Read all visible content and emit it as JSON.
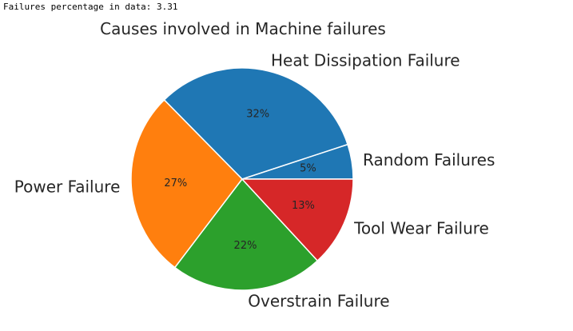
{
  "output": {
    "console_text": "Failures percentage in data: 3.31"
  },
  "chart_data": {
    "type": "pie",
    "title": "Causes involved in Machine failures",
    "start_angle_deg": 0,
    "direction": "counterclockwise",
    "slices": [
      {
        "label": "Random Failures",
        "value": 5,
        "pct_label": "5%",
        "color": "#1f77b4"
      },
      {
        "label": "Heat Dissipation Failure",
        "value": 32,
        "pct_label": "32%",
        "color": "#1f77b4"
      },
      {
        "label": "Power Failure",
        "value": 27,
        "pct_label": "27%",
        "color": "#ff7f0e"
      },
      {
        "label": "Overstrain Failure",
        "value": 22,
        "pct_label": "22%",
        "color": "#2ca02c"
      },
      {
        "label": "Tool Wear Failure",
        "value": 13,
        "pct_label": "13%",
        "color": "#d62728"
      }
    ]
  }
}
